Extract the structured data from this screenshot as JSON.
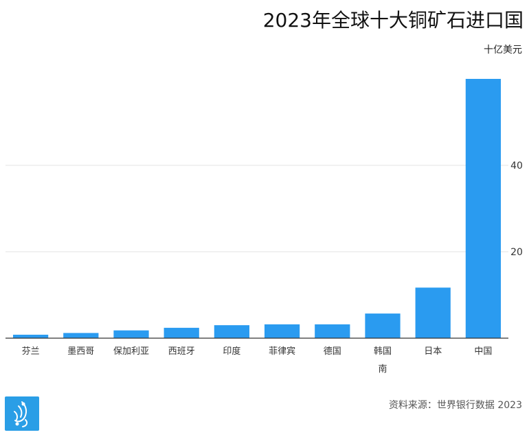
{
  "title": "2023年全球十大铜矿石进口国",
  "unit": "十亿美元",
  "source": "资料来源：世界银行数据 2023",
  "colors": {
    "bar": "#2a9bf0",
    "axis": "#333333",
    "grid": "#e3e3e3",
    "logo": "#2a9ee6"
  },
  "logo_icon": "al-jazeera-logo-icon",
  "chart_data": {
    "type": "bar",
    "title": "2023年全球十大铜矿石进口国",
    "ylabel": "十亿美元",
    "xlabel": "",
    "categories": [
      "芬兰",
      "墨西哥",
      "保加利亚",
      "西班牙",
      "印度",
      "菲律宾",
      "德国",
      "韩国\n南",
      "日本",
      "中国"
    ],
    "values": [
      0.8,
      1.2,
      1.8,
      2.4,
      3.0,
      3.2,
      3.2,
      5.7,
      11.7,
      60.0
    ],
    "ylim": [
      0,
      60
    ],
    "yticks": [
      20,
      40
    ],
    "grid": true,
    "y_axis_side": "right"
  }
}
